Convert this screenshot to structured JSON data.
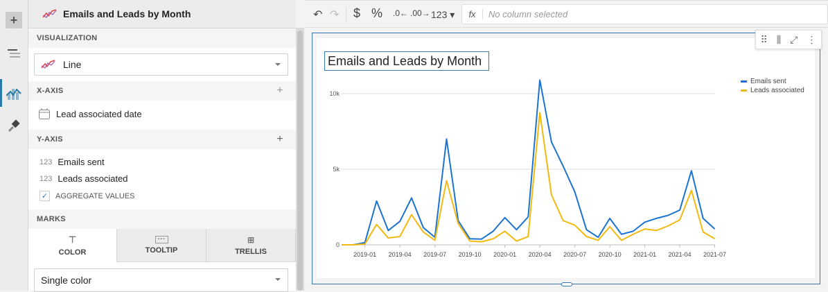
{
  "rail": {
    "items": [
      "add",
      "outline",
      "visualization",
      "format"
    ]
  },
  "panel": {
    "title": "Emails and Leads by Month",
    "visualization_label": "VISUALIZATION",
    "viz_type": "Line",
    "xaxis_label": "X-AXIS",
    "xaxis_field": "Lead associated date",
    "yaxis_label": "Y-AXIS",
    "yaxis_fields": [
      {
        "type": "123",
        "name": "Emails sent"
      },
      {
        "type": "123",
        "name": "Leads associated"
      }
    ],
    "aggregate_label": "AGGREGATE VALUES",
    "aggregate_checked": true,
    "marks_label": "MARKS",
    "marks_tabs": [
      "COLOR",
      "TOOLTIP",
      "TRELLIS"
    ],
    "color_mode": "Single color"
  },
  "toolbar": {
    "number_format": "123",
    "formula_placeholder": "No column selected",
    "fx": "fx"
  },
  "chart_data": {
    "type": "line",
    "title": "Emails and Leads by Month",
    "x": [
      "2018-11",
      "2018-12",
      "2019-01",
      "2019-02",
      "2019-03",
      "2019-04",
      "2019-05",
      "2019-06",
      "2019-07",
      "2019-08",
      "2019-09",
      "2019-10",
      "2019-11",
      "2019-12",
      "2020-01",
      "2020-02",
      "2020-03",
      "2020-04",
      "2020-05",
      "2020-06",
      "2020-07",
      "2020-08",
      "2020-09",
      "2020-10",
      "2020-11",
      "2020-12",
      "2021-01",
      "2021-02",
      "2021-03",
      "2021-04",
      "2021-05",
      "2021-06",
      "2021-07"
    ],
    "x_ticks": [
      "2019-01",
      "2019-04",
      "2019-07",
      "2019-10",
      "2020-01",
      "2020-04",
      "2020-07",
      "2020-10",
      "2021-01",
      "2021-04",
      "2021-07"
    ],
    "y_ticks": [
      {
        "v": 0,
        "label": "0"
      },
      {
        "v": 5000,
        "label": "5k"
      },
      {
        "v": 10000,
        "label": "10k"
      }
    ],
    "ylim": [
      0,
      10000
    ],
    "grid": true,
    "legend": "top-right",
    "series": [
      {
        "name": "Emails sent",
        "color": "#1a73d0",
        "values": [
          0,
          0,
          150,
          2900,
          950,
          1550,
          3100,
          1150,
          500,
          7000,
          1600,
          400,
          380,
          900,
          1800,
          1000,
          1850,
          10900,
          6800,
          5200,
          3500,
          1000,
          500,
          1750,
          700,
          900,
          1500,
          1750,
          1950,
          2300,
          4900,
          1750,
          1050
        ]
      },
      {
        "name": "Leads associated",
        "color": "#f2b90f",
        "values": [
          0,
          0,
          50,
          1350,
          450,
          550,
          2000,
          850,
          300,
          4250,
          1400,
          250,
          200,
          400,
          900,
          250,
          550,
          8750,
          3300,
          1600,
          1300,
          550,
          300,
          1200,
          300,
          700,
          1050,
          950,
          1250,
          1650,
          3600,
          850,
          400
        ]
      }
    ]
  }
}
